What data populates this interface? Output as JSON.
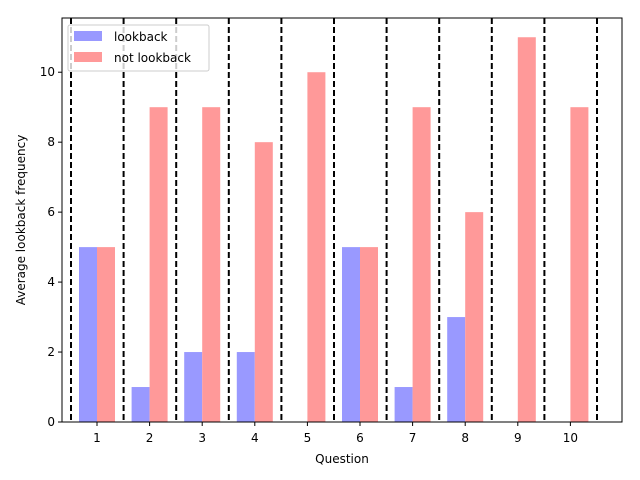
{
  "chart_data": {
    "type": "bar",
    "xlabel": "Question",
    "ylabel": "Average lookback frequency",
    "categories": [
      "1",
      "2",
      "3",
      "4",
      "5",
      "6",
      "7",
      "8",
      "9",
      "10"
    ],
    "series": [
      {
        "name": "lookback",
        "color": "#9999ff",
        "values": [
          5,
          1,
          2,
          2,
          0,
          5,
          1,
          3,
          0,
          0
        ]
      },
      {
        "name": "not lookback",
        "color": "#ff9999",
        "values": [
          5,
          9,
          9,
          8,
          10,
          5,
          9,
          6,
          11,
          9
        ]
      }
    ],
    "yticks": [
      0,
      2,
      4,
      6,
      8,
      10
    ],
    "ylim": [
      0,
      11.55
    ],
    "grid": false,
    "separators": "dashed vertical lines between questions",
    "legend": "top-left"
  }
}
